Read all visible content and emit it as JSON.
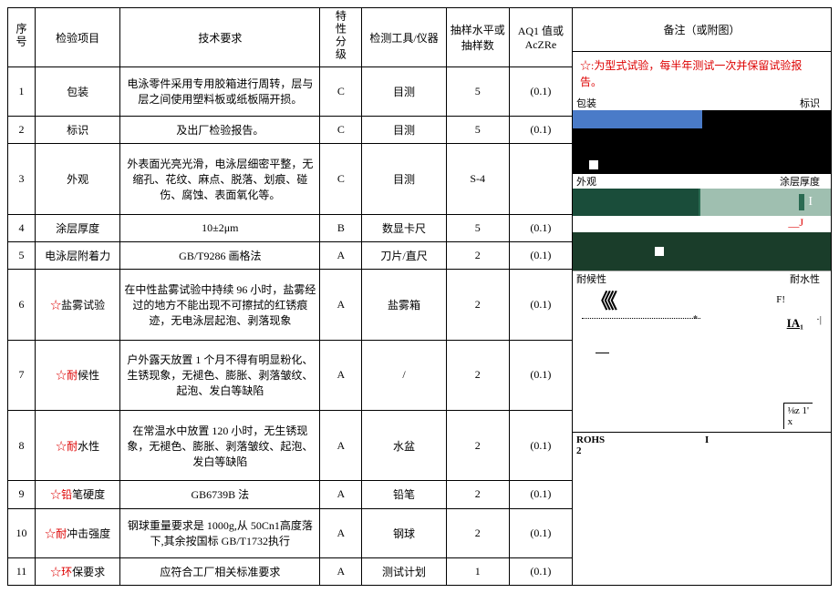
{
  "headers": {
    "seq": "序号",
    "item": "检验项目",
    "req": "技术要求",
    "grade": "特性分级",
    "tool": "检测工具/仪器",
    "sample": "抽样水平或抽样数",
    "aql": "AQ1 值或AcZRe",
    "remark": "备注（或附图）"
  },
  "note": "☆:为型式试验，每半年测试一次并保留试验报告。",
  "rows": [
    {
      "seq": "1",
      "item": "包装",
      "star": "",
      "req": "电泳零件采用专用胶箱进行周转，层与层之间使用塑料板或纸板隔开损。",
      "req_center": false,
      "grade": "C",
      "tool": "目测",
      "sample": "5",
      "aql": "(0.1)"
    },
    {
      "seq": "2",
      "item": "标识",
      "star": "",
      "req": "及出厂检验报告。",
      "req_center": false,
      "grade": "C",
      "tool": "目测",
      "sample": "5",
      "aql": "(0.1)"
    },
    {
      "seq": "3",
      "item": "外观",
      "star": "",
      "req": "外表面光亮光滑，电泳层细密平整，无缩孔、花纹、麻点、脱落、划痕、碰伤、腐蚀、表面氧化等。",
      "req_center": false,
      "grade": "C",
      "tool": "目测",
      "sample": "S-4",
      "aql": ""
    },
    {
      "seq": "4",
      "item": "涂层厚度",
      "star": "",
      "req": "10±2μm",
      "req_center": true,
      "grade": "B",
      "tool": "数显卡尺",
      "sample": "5",
      "aql": "(0.1)"
    },
    {
      "seq": "5",
      "item": "电泳层附着力",
      "star": "",
      "req": "GB/T9286 画格法",
      "req_center": true,
      "grade": "A",
      "tool": "刀片/直尺",
      "sample": "2",
      "aql": "(0.1)"
    },
    {
      "seq": "6",
      "item": "盐雾试验",
      "star": "☆",
      "req": "在中性盐雾试验中持续 96 小时，盐雾经过的地方不能出现不可擦拭的红锈痕迹，无电泳层起泡、剥落现象",
      "req_center": false,
      "grade": "A",
      "tool": "盐雾箱",
      "sample": "2",
      "aql": "(0.1)"
    },
    {
      "seq": "7",
      "item": "候性",
      "star": "☆耐",
      "req": "户外露天放置 1 个月不得有明显粉化、生锈现象，无褪色、膨胀、剥落皱纹、起泡、发白等缺陷",
      "req_center": false,
      "grade": "A",
      "tool": "/",
      "sample": "2",
      "aql": "(0.1)"
    },
    {
      "seq": "8",
      "item": "水性",
      "star": "☆耐",
      "req": "在常温水中放置 120 小时，无生锈现象，无褪色、膨胀、剥落皱纹、起泡、发白等缺陷",
      "req_center": false,
      "grade": "A",
      "tool": "水盆",
      "sample": "2",
      "aql": "(0.1)"
    },
    {
      "seq": "9",
      "item": "笔硬度",
      "star": "☆铅",
      "req": "GB6739B 法",
      "req_center": true,
      "grade": "A",
      "tool": "铅笔",
      "sample": "2",
      "aql": "(0.1)"
    },
    {
      "seq": "10",
      "item": "冲击强度",
      "star": "☆耐",
      "req": "钢球重量要求是 1000g,从 50Cn1高度落下,其余按国标 GB/T1732执行",
      "req_center": false,
      "grade": "A",
      "tool": "钢球",
      "sample": "2",
      "aql": "(0.1)"
    },
    {
      "seq": "11",
      "item": "保要求",
      "star": "☆环",
      "req": "应符合工厂相关标准要求",
      "req_center": true,
      "grade": "A",
      "tool": "测试计划",
      "sample": "1",
      "aql": "(0.1)"
    }
  ],
  "diag": {
    "pack": "包装",
    "mark": "标识",
    "appearance": "外观",
    "thickness": "涂层厚度",
    "weather": "耐候性",
    "water": "耐水性",
    "j": "J",
    "f": "F!",
    "ia": "IA₁",
    "frac": "⅛z 1'",
    "fracx": "x",
    "rohs": "ROHS",
    "rohs2": "2",
    "rohsi": "I",
    "chev": "《《"
  }
}
